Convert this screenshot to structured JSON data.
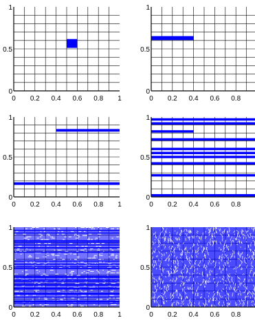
{
  "chart_data": [
    {
      "type": "scatter",
      "panel": "1",
      "xlim": [
        0,
        1
      ],
      "ylim": [
        0,
        1
      ],
      "xticks": [
        "0",
        "0.2",
        "0.4",
        "0.6",
        "0.8",
        "1"
      ],
      "yticks": [
        "0",
        "0.5",
        "1"
      ],
      "grid": true,
      "marker_color": "#0000ff",
      "segments": [
        {
          "x": [
            0.5,
            0.6
          ],
          "y": [
            0.512,
            0.617
          ]
        }
      ]
    },
    {
      "type": "scatter",
      "panel": "2",
      "xlim": [
        0,
        1
      ],
      "ylim": [
        0,
        1
      ],
      "xticks": [
        "0",
        "0.2",
        "0.4",
        "0.6",
        "0.8"
      ],
      "yticks": [
        "0",
        "0.5",
        "1"
      ],
      "grid": true,
      "marker_color": "#0000ff",
      "segments": [
        {
          "x": [
            0,
            0.4
          ],
          "y": [
            0.605,
            0.652
          ]
        }
      ]
    },
    {
      "type": "scatter",
      "panel": "3",
      "xlim": [
        0,
        1
      ],
      "ylim": [
        0,
        1
      ],
      "xticks": [
        "0",
        "0.2",
        "0.4",
        "0.6",
        "0.8",
        "1"
      ],
      "yticks": [
        "0",
        "0.5",
        "1"
      ],
      "grid": true,
      "marker_color": "#0000ff",
      "segments": [
        {
          "x": [
            0.4,
            1
          ],
          "y": [
            0.817,
            0.85
          ]
        },
        {
          "x": [
            0,
            1
          ],
          "y": [
            0.15,
            0.183
          ]
        }
      ]
    },
    {
      "type": "scatter",
      "panel": "4",
      "xlim": [
        0,
        1
      ],
      "ylim": [
        0,
        1
      ],
      "xticks": [
        "0",
        "0.2",
        "0.4",
        "0.6",
        "0.8"
      ],
      "yticks": [
        "0",
        "0.5",
        "1"
      ],
      "grid": true,
      "marker_color": "#0000ff",
      "segments": [
        {
          "x": [
            0,
            1
          ],
          "y": [
            0.955,
            0.985
          ]
        },
        {
          "x": [
            0,
            1
          ],
          "y": [
            0.905,
            0.935
          ]
        },
        {
          "x": [
            0,
            0.4
          ],
          "y": [
            0.805,
            0.835
          ]
        },
        {
          "x": [
            0,
            1
          ],
          "y": [
            0.705,
            0.735
          ]
        },
        {
          "x": [
            0,
            1
          ],
          "y": [
            0.585,
            0.615
          ]
        },
        {
          "x": [
            0,
            1
          ],
          "y": [
            0.535,
            0.565
          ]
        },
        {
          "x": [
            0,
            1
          ],
          "y": [
            0.485,
            0.515
          ]
        },
        {
          "x": [
            0,
            1
          ],
          "y": [
            0.405,
            0.435
          ]
        },
        {
          "x": [
            0,
            1
          ],
          "y": [
            0.255,
            0.285
          ]
        },
        {
          "x": [
            0,
            1
          ],
          "y": [
            0.005,
            0.035
          ]
        }
      ]
    },
    {
      "type": "scatter",
      "panel": "5",
      "xlim": [
        0,
        1
      ],
      "ylim": [
        0,
        1
      ],
      "xticks": [
        "0",
        "0.2",
        "0.4",
        "0.6",
        "0.8",
        "1"
      ],
      "yticks": [
        "0",
        "0.5",
        "1"
      ],
      "grid": true,
      "marker_color": "#0000ff",
      "segments": [
        {
          "x": [
            0,
            1
          ],
          "y": [
            0,
            1
          ],
          "density": "dense-horizontal-bands"
        }
      ]
    },
    {
      "type": "scatter",
      "panel": "6",
      "xlim": [
        0,
        1
      ],
      "ylim": [
        0,
        1
      ],
      "xticks": [
        "0",
        "0.2",
        "0.4",
        "0.6",
        "0.8"
      ],
      "yticks": [
        "0",
        "0.5",
        "1"
      ],
      "grid": true,
      "marker_color": "#0000ff",
      "segments": [
        {
          "x": [
            0,
            1
          ],
          "y": [
            0,
            1
          ],
          "density": "dense-random"
        }
      ]
    }
  ]
}
